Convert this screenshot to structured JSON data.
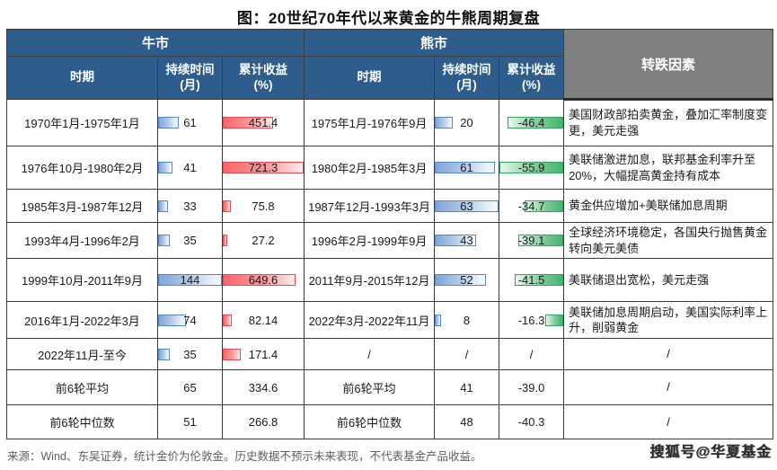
{
  "title": "图：20世纪70年代以来黄金的牛熊周期复盘",
  "headers": {
    "bull": "牛市",
    "bear": "熊市",
    "factor": "转跌因素",
    "period": "时期",
    "duration": "持续时间\n(月)",
    "return": "累计收益\n(%)"
  },
  "source": "来源：Wind、东吴证券，统计金价为伦敦金。历史数据不预示未来表现，不代表基金产品收益。",
  "watermark": "搜狐号@华夏基金",
  "colors": {
    "header_blue": "#2e5c8d",
    "header_gray": "#808080",
    "bar_blue": "#7ea6d8",
    "bar_red": "#f7676b",
    "bar_green": "#46b56f"
  },
  "chart_data": {
    "type": "table",
    "title": "图：20世纪70年代以来黄金的牛熊周期复盘",
    "column_groups": [
      "牛市",
      "熊市",
      "转跌因素"
    ],
    "columns": [
      "时期",
      "持续时间(月)",
      "累计收益(%)",
      "时期",
      "持续时间(月)",
      "累计收益(%)",
      "转跌因素"
    ],
    "bar_scales": {
      "bull_duration_max": 144,
      "bull_return_max": 721.3,
      "bear_duration_max": 63,
      "bear_return_abs_max": 55.9
    },
    "rows": [
      {
        "bull_period": "1970年1月-1975年1月",
        "bull_duration": "61",
        "bull_duration_bar": 33,
        "bull_return": "451.4",
        "bull_return_bar": 62,
        "bear_period": "1975年1月-1976年9月",
        "bear_duration": "20",
        "bear_duration_bar": 28,
        "bear_return": "-46.4",
        "bear_return_bar": 88,
        "factor": "美国财政部拍卖黄金，叠加汇率制度变更，美元走强"
      },
      {
        "bull_period": "1976年10月-1980年2月",
        "bull_duration": "41",
        "bull_duration_bar": 22,
        "bull_return": "721.3",
        "bull_return_bar": 100,
        "bear_period": "1980年2月-1985年3月",
        "bear_duration": "61",
        "bear_duration_bar": 95,
        "bear_return": "-55.9",
        "bear_return_bar": 100,
        "factor": "美联储激进加息，联邦基金利率升至20%，大幅提高黄金持有成本"
      },
      {
        "bull_period": "1985年3月-1987年12月",
        "bull_duration": "33",
        "bull_duration_bar": 16,
        "bull_return": "75.8",
        "bull_return_bar": 10,
        "bear_period": "1987年12月-1993年3月",
        "bear_duration": "63",
        "bear_duration_bar": 100,
        "bear_return": "-34.7",
        "bear_return_bar": 60,
        "factor": "黄金供应增加+美联储加息周期"
      },
      {
        "bull_period": "1993年4月-1996年2月",
        "bull_duration": "35",
        "bull_duration_bar": 18,
        "bull_return": "27.2",
        "bull_return_bar": 5,
        "bear_period": "1996年2月-1999年9月",
        "bear_duration": "43",
        "bear_duration_bar": 65,
        "bear_return": "-39.1",
        "bear_return_bar": 70,
        "factor": "全球经济环境稳定，各国央行抛售黄金转向美元美债"
      },
      {
        "bull_period": "1999年10月-2011年9月",
        "bull_duration": "144",
        "bull_duration_bar": 100,
        "bull_return": "649.6",
        "bull_return_bar": 90,
        "bear_period": "2011年9月-2015年12月",
        "bear_duration": "52",
        "bear_duration_bar": 80,
        "bear_return": "-41.5",
        "bear_return_bar": 76,
        "factor": "美联储退出宽松，美元走强"
      },
      {
        "bull_period": "2016年1月-2022年3月",
        "bull_duration": "74",
        "bull_duration_bar": 44,
        "bull_return": "82.14",
        "bull_return_bar": 11,
        "bear_period": "2022年3月-2022年11月",
        "bear_duration": "8",
        "bear_duration_bar": 10,
        "bear_return": "-16.3",
        "bear_return_bar": 28,
        "factor": "美联储加息周期启动，美国实际利率上升，削弱黄金"
      },
      {
        "bull_period": "2022年11月-至今",
        "bull_duration": "35",
        "bull_duration_bar": 18,
        "bull_return": "171.4",
        "bull_return_bar": 22,
        "bear_period": "/",
        "bear_duration": "/",
        "bear_duration_bar": null,
        "bear_return": "/",
        "bear_return_bar": null,
        "factor": "/"
      },
      {
        "bull_period": "前6轮平均",
        "bull_duration": "65",
        "bull_duration_bar": null,
        "bull_return": "334.6",
        "bull_return_bar": null,
        "bear_period": "前6轮平均",
        "bear_duration": "41",
        "bear_duration_bar": null,
        "bear_return": "-39.0",
        "bear_return_bar": null,
        "factor": "/"
      },
      {
        "bull_period": "前6轮中位数",
        "bull_duration": "51",
        "bull_duration_bar": null,
        "bull_return": "266.8",
        "bull_return_bar": null,
        "bear_period": "前6轮中位数",
        "bear_duration": "48",
        "bear_duration_bar": null,
        "bear_return": "-40.3",
        "bear_return_bar": null,
        "factor": "/"
      }
    ]
  }
}
